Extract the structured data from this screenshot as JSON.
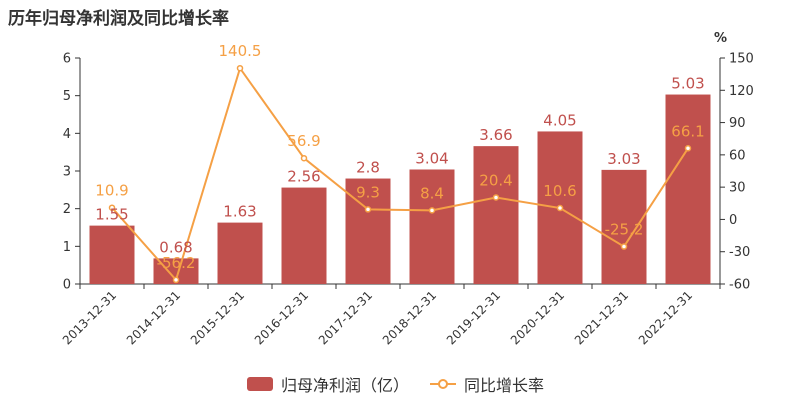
{
  "chart_data": {
    "type": "bar",
    "title": "历年归母净利润及同比增长率",
    "categories": [
      "2013-12-31",
      "2014-12-31",
      "2015-12-31",
      "2016-12-31",
      "2017-12-31",
      "2018-12-31",
      "2019-12-31",
      "2020-12-31",
      "2021-12-31",
      "2022-12-31"
    ],
    "series": [
      {
        "name": "归母净利润（亿）",
        "type": "bar",
        "axis": "left",
        "color": "#c0504d",
        "values": [
          1.55,
          0.68,
          1.63,
          2.56,
          2.8,
          3.04,
          3.66,
          4.05,
          3.03,
          5.03
        ],
        "labels": [
          "1.55",
          "0.68",
          "1.63",
          "2.56",
          "2.8",
          "3.04",
          "3.66",
          "4.05",
          "3.03",
          "5.03"
        ]
      },
      {
        "name": "同比增长率",
        "type": "line",
        "axis": "right",
        "color": "#f5a045",
        "values": [
          10.9,
          -56.2,
          140.5,
          56.9,
          9.3,
          8.4,
          20.4,
          10.6,
          -25.2,
          66.1
        ],
        "labels": [
          "10.9",
          "-56.2",
          "140.5",
          "56.9",
          "9.3",
          "8.4",
          "20.4",
          "10.6",
          "-25.2",
          "66.1"
        ]
      }
    ],
    "y_left": {
      "min": 0,
      "max": 6,
      "ticks": [
        "0",
        "1",
        "2",
        "3",
        "4",
        "5",
        "6"
      ]
    },
    "y_right": {
      "min": -60,
      "max": 150,
      "unit": "%",
      "ticks": [
        "-60",
        "-30",
        "0",
        "30",
        "60",
        "90",
        "120",
        "150"
      ]
    },
    "grid": false,
    "legend_position": "bottom-center"
  }
}
